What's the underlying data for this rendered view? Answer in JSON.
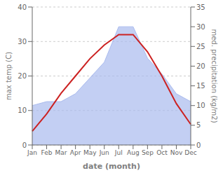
{
  "chart_data": {
    "type": "line",
    "xlabel": "date (month)",
    "ylabel": "max temp (C)",
    "y2label": "med. precipitation (kg/m2)",
    "categories": [
      "Jan",
      "Feb",
      "Mar",
      "Apr",
      "May",
      "Jun",
      "Jul",
      "Aug",
      "Sep",
      "Oct",
      "Nov",
      "Dec"
    ],
    "series": [
      {
        "type": "area",
        "axis": "y2",
        "color": "#aabbee",
        "values": [
          10,
          11,
          11,
          13,
          17,
          21,
          30,
          30,
          22,
          18,
          13,
          11
        ]
      },
      {
        "type": "line",
        "color": "#cc2222",
        "values": [
          4,
          9,
          15,
          20,
          25,
          29,
          32,
          32,
          27,
          20,
          12,
          6
        ]
      }
    ],
    "ylim": [
      0,
      40
    ],
    "yticks": [
      0,
      10,
      20,
      30,
      40
    ],
    "y2lim": [
      0,
      35
    ],
    "y2ticks": [
      0,
      5,
      10,
      15,
      20,
      25,
      30,
      35
    ],
    "grid": true
  }
}
